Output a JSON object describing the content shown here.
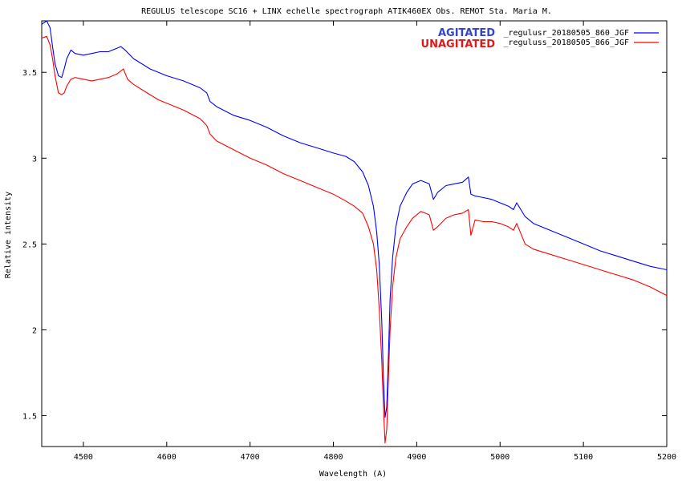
{
  "chart_data": {
    "type": "line",
    "title": "REGULUS  telescope SC16 + LINX   echelle spectrograph  ATIK460EX Obs. REMOT  Sta. Maria M.",
    "xlabel": "Wavelength (A)",
    "ylabel": "Relative intensity",
    "xlim": [
      4450,
      5200
    ],
    "ylim": [
      1.32,
      3.8
    ],
    "x_ticks": [
      4500,
      4600,
      4700,
      4800,
      4900,
      5000,
      5100,
      5200
    ],
    "y_ticks": [
      1.5,
      2,
      2.5,
      3,
      3.5
    ],
    "y_tick_labels": [
      "1.5",
      "2",
      "2.5",
      "3",
      "3.5"
    ],
    "grid": false,
    "legend_position": "top-right",
    "annotations": [
      {
        "text": "AGITATED",
        "color": "#3344cc",
        "series": 0
      },
      {
        "text": "UNAGITATED",
        "color": "#e01818",
        "series": 1
      }
    ],
    "series": [
      {
        "name": "_regulusr_20180505_860_JGF",
        "color": "#0000ff",
        "points": [
          [
            4450,
            3.78
          ],
          [
            4456,
            3.8
          ],
          [
            4460,
            3.76
          ],
          [
            4463,
            3.65
          ],
          [
            4466,
            3.55
          ],
          [
            4470,
            3.48
          ],
          [
            4474,
            3.47
          ],
          [
            4477,
            3.52
          ],
          [
            4480,
            3.58
          ],
          [
            4485,
            3.63
          ],
          [
            4490,
            3.61
          ],
          [
            4500,
            3.6
          ],
          [
            4510,
            3.61
          ],
          [
            4520,
            3.62
          ],
          [
            4530,
            3.62
          ],
          [
            4540,
            3.64
          ],
          [
            4545,
            3.65
          ],
          [
            4550,
            3.63
          ],
          [
            4556,
            3.6
          ],
          [
            4560,
            3.58
          ],
          [
            4570,
            3.55
          ],
          [
            4580,
            3.52
          ],
          [
            4590,
            3.5
          ],
          [
            4600,
            3.48
          ],
          [
            4620,
            3.45
          ],
          [
            4640,
            3.41
          ],
          [
            4648,
            3.38
          ],
          [
            4652,
            3.33
          ],
          [
            4660,
            3.3
          ],
          [
            4680,
            3.25
          ],
          [
            4700,
            3.22
          ],
          [
            4720,
            3.18
          ],
          [
            4740,
            3.13
          ],
          [
            4760,
            3.09
          ],
          [
            4780,
            3.06
          ],
          [
            4800,
            3.03
          ],
          [
            4815,
            3.01
          ],
          [
            4825,
            2.98
          ],
          [
            4835,
            2.92
          ],
          [
            4842,
            2.84
          ],
          [
            4848,
            2.72
          ],
          [
            4852,
            2.57
          ],
          [
            4855,
            2.38
          ],
          [
            4858,
            2.05
          ],
          [
            4860,
            1.72
          ],
          [
            4862,
            1.49
          ],
          [
            4864,
            1.55
          ],
          [
            4866,
            1.85
          ],
          [
            4868,
            2.18
          ],
          [
            4871,
            2.42
          ],
          [
            4875,
            2.6
          ],
          [
            4880,
            2.72
          ],
          [
            4888,
            2.8
          ],
          [
            4895,
            2.85
          ],
          [
            4905,
            2.87
          ],
          [
            4915,
            2.85
          ],
          [
            4920,
            2.76
          ],
          [
            4925,
            2.8
          ],
          [
            4935,
            2.84
          ],
          [
            4945,
            2.85
          ],
          [
            4955,
            2.86
          ],
          [
            4962,
            2.89
          ],
          [
            4965,
            2.79
          ],
          [
            4970,
            2.78
          ],
          [
            4980,
            2.77
          ],
          [
            4990,
            2.76
          ],
          [
            5000,
            2.74
          ],
          [
            5010,
            2.72
          ],
          [
            5016,
            2.7
          ],
          [
            5020,
            2.74
          ],
          [
            5030,
            2.66
          ],
          [
            5040,
            2.62
          ],
          [
            5060,
            2.58
          ],
          [
            5080,
            2.54
          ],
          [
            5100,
            2.5
          ],
          [
            5120,
            2.46
          ],
          [
            5140,
            2.43
          ],
          [
            5160,
            2.4
          ],
          [
            5180,
            2.37
          ],
          [
            5200,
            2.35
          ]
        ]
      },
      {
        "name": "_reguluss_20180505_866_JGF",
        "color": "#ff0000",
        "points": [
          [
            4450,
            3.7
          ],
          [
            4456,
            3.71
          ],
          [
            4460,
            3.66
          ],
          [
            4463,
            3.58
          ],
          [
            4466,
            3.48
          ],
          [
            4470,
            3.38
          ],
          [
            4474,
            3.37
          ],
          [
            4477,
            3.38
          ],
          [
            4480,
            3.42
          ],
          [
            4485,
            3.46
          ],
          [
            4490,
            3.47
          ],
          [
            4500,
            3.46
          ],
          [
            4510,
            3.45
          ],
          [
            4520,
            3.46
          ],
          [
            4530,
            3.47
          ],
          [
            4540,
            3.49
          ],
          [
            4548,
            3.52
          ],
          [
            4553,
            3.46
          ],
          [
            4560,
            3.43
          ],
          [
            4570,
            3.4
          ],
          [
            4580,
            3.37
          ],
          [
            4590,
            3.34
          ],
          [
            4600,
            3.32
          ],
          [
            4620,
            3.28
          ],
          [
            4640,
            3.23
          ],
          [
            4648,
            3.19
          ],
          [
            4652,
            3.14
          ],
          [
            4660,
            3.1
          ],
          [
            4680,
            3.05
          ],
          [
            4700,
            3.0
          ],
          [
            4720,
            2.96
          ],
          [
            4740,
            2.91
          ],
          [
            4760,
            2.87
          ],
          [
            4780,
            2.83
          ],
          [
            4800,
            2.79
          ],
          [
            4815,
            2.75
          ],
          [
            4825,
            2.72
          ],
          [
            4835,
            2.68
          ],
          [
            4842,
            2.6
          ],
          [
            4848,
            2.5
          ],
          [
            4852,
            2.35
          ],
          [
            4855,
            2.12
          ],
          [
            4858,
            1.82
          ],
          [
            4860,
            1.55
          ],
          [
            4862,
            1.34
          ],
          [
            4864,
            1.42
          ],
          [
            4866,
            1.72
          ],
          [
            4868,
            2.0
          ],
          [
            4871,
            2.25
          ],
          [
            4875,
            2.42
          ],
          [
            4880,
            2.53
          ],
          [
            4888,
            2.6
          ],
          [
            4895,
            2.65
          ],
          [
            4905,
            2.69
          ],
          [
            4915,
            2.67
          ],
          [
            4920,
            2.58
          ],
          [
            4925,
            2.6
          ],
          [
            4935,
            2.65
          ],
          [
            4945,
            2.67
          ],
          [
            4955,
            2.68
          ],
          [
            4962,
            2.7
          ],
          [
            4965,
            2.55
          ],
          [
            4970,
            2.64
          ],
          [
            4980,
            2.63
          ],
          [
            4990,
            2.63
          ],
          [
            5000,
            2.62
          ],
          [
            5010,
            2.6
          ],
          [
            5016,
            2.58
          ],
          [
            5020,
            2.62
          ],
          [
            5030,
            2.5
          ],
          [
            5040,
            2.47
          ],
          [
            5060,
            2.44
          ],
          [
            5080,
            2.41
          ],
          [
            5100,
            2.38
          ],
          [
            5120,
            2.35
          ],
          [
            5140,
            2.32
          ],
          [
            5160,
            2.29
          ],
          [
            5180,
            2.25
          ],
          [
            5200,
            2.2
          ]
        ]
      }
    ]
  }
}
